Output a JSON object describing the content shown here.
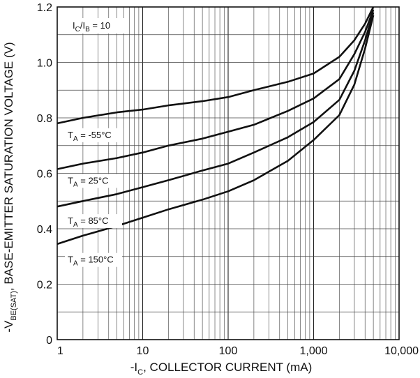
{
  "chart_data": {
    "type": "line",
    "title": "",
    "xlabel": {
      "prefix": "-I",
      "sub": "C",
      "suffix": ", COLLECTOR CURRENT (mA)"
    },
    "ylabel": {
      "prefix": "-V",
      "sub": "BE(SAT)",
      "suffix": ", BASE-EMITTER SATURATION VOLTAGE (V)"
    },
    "xscale": "log",
    "xlim": [
      1,
      10000
    ],
    "ylim": [
      0,
      1.2
    ],
    "grid": true,
    "x_tick_labels": [
      "1",
      "10",
      "100",
      "1,000",
      "10,000"
    ],
    "y_tick_labels": [
      "0",
      "0.2",
      "0.4",
      "0.6",
      "0.8",
      "1.0",
      "1.2"
    ],
    "x_ticks": [
      1,
      10,
      100,
      1000,
      10000
    ],
    "y_ticks": [
      0,
      0.2,
      0.4,
      0.6,
      0.8,
      1.0,
      1.2
    ],
    "condition": {
      "a": "I",
      "a_sub": "C",
      "sep": "/",
      "b": "I",
      "b_sub": "B",
      "value": " = 10"
    },
    "series": [
      {
        "name": "T_A = -55°C",
        "label": {
          "t": "T",
          "sub": "A",
          "rest": " = -55°C"
        },
        "x": [
          1,
          2,
          5,
          10,
          20,
          50,
          100,
          200,
          500,
          1000,
          2000,
          3000,
          4000,
          5000
        ],
        "y": [
          0.78,
          0.8,
          0.82,
          0.83,
          0.845,
          0.86,
          0.875,
          0.9,
          0.93,
          0.96,
          1.02,
          1.08,
          1.14,
          1.2
        ]
      },
      {
        "name": "T_A = 25°C",
        "label": {
          "t": "T",
          "sub": "A",
          "rest": " = 25°C"
        },
        "x": [
          1,
          2,
          5,
          10,
          20,
          50,
          100,
          200,
          500,
          1000,
          2000,
          3000,
          4000,
          5000
        ],
        "y": [
          0.615,
          0.635,
          0.655,
          0.675,
          0.7,
          0.725,
          0.75,
          0.775,
          0.825,
          0.87,
          0.94,
          1.03,
          1.11,
          1.19
        ]
      },
      {
        "name": "T_A = 85°C",
        "label": {
          "t": "T",
          "sub": "A",
          "rest": " = 85°C"
        },
        "x": [
          1,
          2,
          5,
          10,
          20,
          50,
          100,
          200,
          500,
          1000,
          2000,
          3000,
          4000,
          5000
        ],
        "y": [
          0.48,
          0.5,
          0.525,
          0.55,
          0.575,
          0.61,
          0.635,
          0.675,
          0.73,
          0.785,
          0.865,
          0.97,
          1.08,
          1.18
        ]
      },
      {
        "name": "T_A = 150°C",
        "label": {
          "t": "T",
          "sub": "A",
          "rest": " = 150°C"
        },
        "x": [
          1,
          2,
          5,
          10,
          20,
          50,
          100,
          200,
          500,
          1000,
          2000,
          3000,
          4000,
          5000
        ],
        "y": [
          0.345,
          0.375,
          0.41,
          0.44,
          0.47,
          0.505,
          0.535,
          0.575,
          0.645,
          0.72,
          0.81,
          0.92,
          1.05,
          1.17
        ]
      }
    ]
  }
}
